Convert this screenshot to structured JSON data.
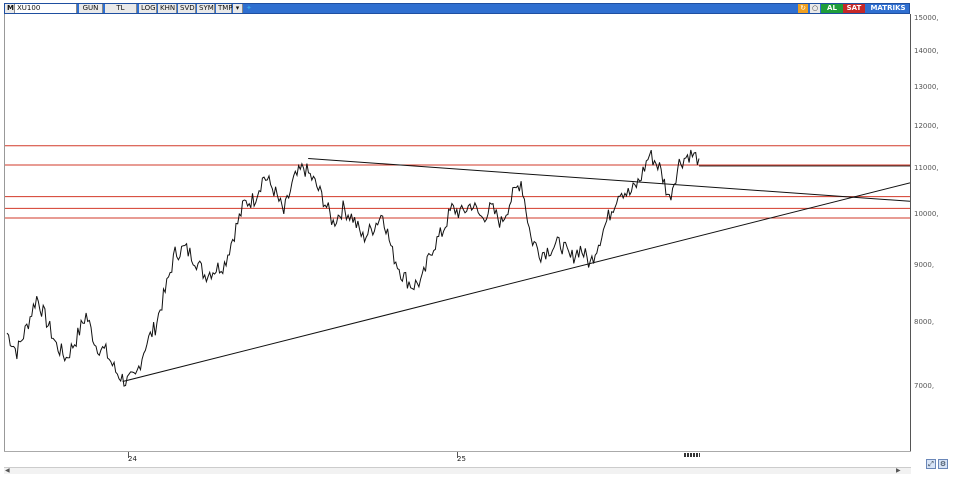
{
  "toolbar": {
    "menu_label": "M",
    "symbol": "XU100",
    "buttons": [
      "GUN",
      "TL",
      "LOG",
      "KHN",
      "SVD",
      "SYM",
      "TMP"
    ],
    "dropdown_icon": "triangle-down-icon",
    "share_icon": "bird-icon",
    "right": {
      "al_label": "AL",
      "sat_label": "SAT",
      "matriks_label": "MATRIKS",
      "al_color": "#1f9d3a",
      "sat_color": "#c62828"
    }
  },
  "price_axis": {
    "ticks": [
      "15000,",
      "14000,",
      "13000,",
      "12000,",
      "11000,",
      "10000,",
      "9000,",
      "8000,",
      "7000,"
    ]
  },
  "time_axis": {
    "labels": [
      "24",
      "25"
    ]
  },
  "colors": {
    "horizontal_levels": "#d23a2a",
    "trendlines": "#111111",
    "candles": "#111111"
  },
  "chart_data": {
    "type": "line",
    "title": "",
    "xlabel": "",
    "ylabel": "",
    "yscale": "log",
    "ylim": [
      6200,
      15200
    ],
    "x_labels": [
      "24",
      "25"
    ],
    "series": [
      {
        "values": [
          7900,
          7600,
          8000,
          8500,
          8100,
          7700,
          7500,
          7800,
          8200,
          7700,
          7600,
          7300,
          7150,
          7200,
          7700,
          8000,
          8600,
          9300,
          9400,
          9200,
          8900,
          9000,
          9100,
          9700,
          10300,
          10400,
          10900,
          10600,
          10100,
          10800,
          11100,
          10800,
          10400,
          9900,
          10200,
          10000,
          9600,
          9800,
          10100,
          9300,
          8900,
          8700,
          8800,
          9400,
          9700,
          10200,
          10100,
          10300,
          10000,
          10200,
          9900,
          10400,
          10800,
          9600,
          9300,
          9400,
          9500,
          9200,
          9400,
          9100,
          9600,
          10100,
          10600,
          10500,
          10800,
          11400,
          11100,
          10400,
          11200,
          11400,
          11300
        ]
      }
    ],
    "horizontal_levels": [
      11600,
      11150,
      10450,
      10200,
      10000
    ],
    "trendlines": [
      {
        "from": [
          0.13,
          7150
        ],
        "to": [
          1.0,
          10750
        ]
      },
      {
        "from": [
          0.335,
          11300
        ],
        "to": [
          1.0,
          10350
        ]
      }
    ]
  }
}
